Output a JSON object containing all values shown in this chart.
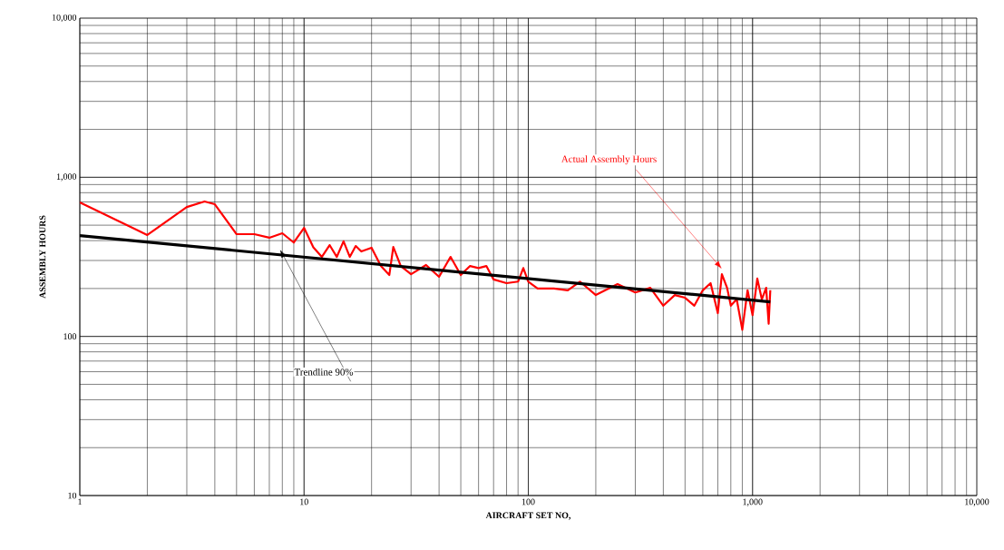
{
  "chart_data": {
    "type": "line",
    "xlabel": "AIRCRAFT SET NO,",
    "ylabel": "ASSEMBLY HOURS",
    "log": "xy",
    "grid": true,
    "marker": "none",
    "xlim": [
      1,
      10000
    ],
    "ylim": [
      10,
      10000
    ],
    "xticks": [
      1,
      10,
      100,
      {
        "value": 1000,
        "label": "1,000"
      },
      {
        "value": 10000,
        "label": "10,000"
      }
    ],
    "yticks": [
      10,
      100,
      {
        "value": 1000,
        "label": "1,000"
      },
      {
        "value": 10000,
        "label": "10,000"
      }
    ],
    "series": [
      {
        "name": "Actual Assembly Hours",
        "color": "#ff0000",
        "x": [
          1,
          2,
          3,
          3.6,
          4,
          5,
          6,
          7,
          8,
          9,
          10,
          11,
          12,
          13,
          14,
          15,
          16,
          17,
          18,
          20,
          22,
          24,
          25,
          27,
          30,
          35,
          40,
          45,
          50,
          55,
          60,
          65,
          70,
          80,
          90,
          95,
          100,
          110,
          130,
          150,
          170,
          200,
          250,
          300,
          350,
          400,
          450,
          500,
          550,
          600,
          650,
          700,
          730,
          770,
          800,
          850,
          900,
          950,
          1000,
          1050,
          1100,
          1150,
          1180,
          1200
        ],
        "values": [
          695,
          434,
          650,
          705,
          677,
          439,
          439,
          417,
          445,
          389,
          481,
          363,
          316,
          375,
          316,
          396,
          316,
          370,
          342,
          361,
          277,
          243,
          365,
          277,
          246,
          281,
          237,
          316,
          243,
          277,
          269,
          277,
          228,
          216,
          221,
          269,
          221,
          200,
          200,
          195,
          221,
          182,
          213,
          189,
          202,
          156,
          182,
          175,
          156,
          195,
          216,
          140,
          246,
          202,
          156,
          171,
          110,
          195,
          136,
          231,
          171,
          202,
          120,
          195
        ]
      },
      {
        "name": "Trendline 90%",
        "color": "#000000",
        "x": [
          1,
          1200
        ],
        "values": [
          430,
          165
        ]
      }
    ]
  }
}
